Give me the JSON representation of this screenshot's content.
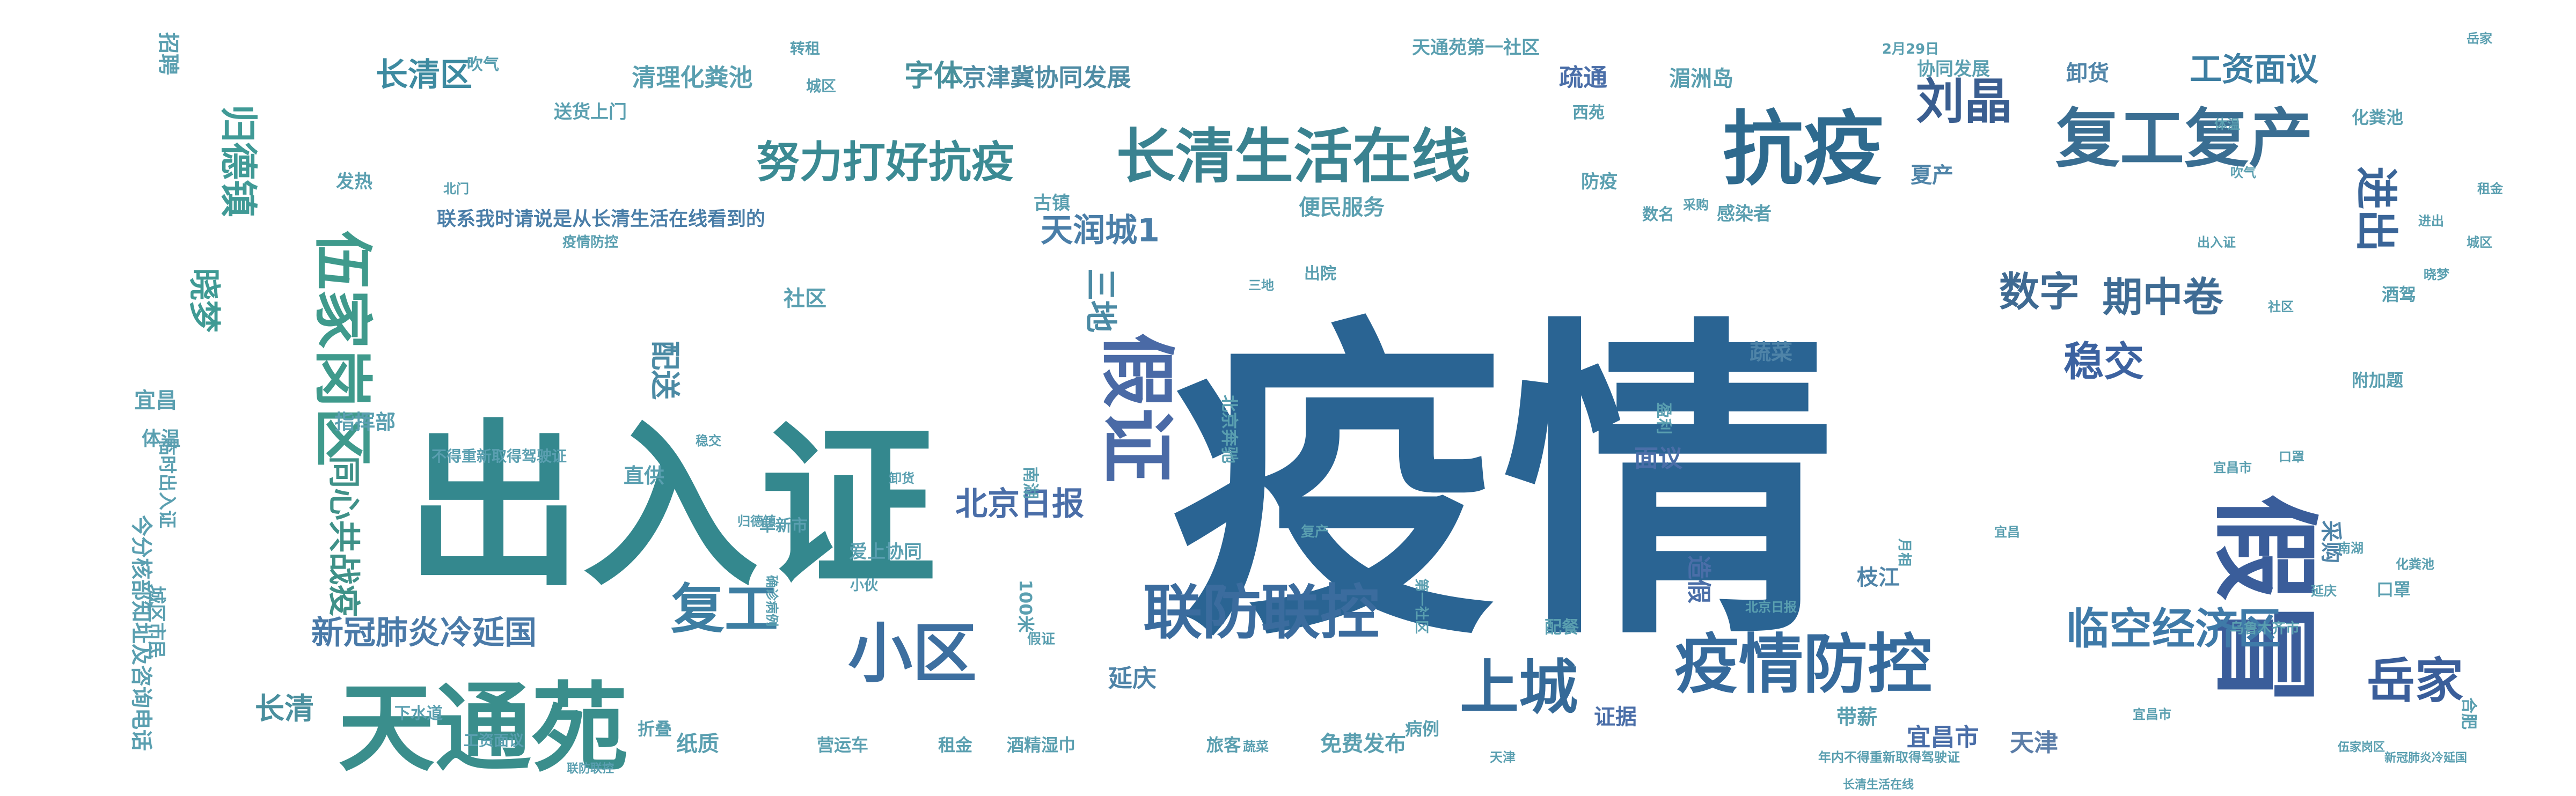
{
  "background": "#ffffff",
  "palette": [
    "#2a6493",
    "#2d7493",
    "#37888f",
    "#3f9a8c",
    "#5a9fb0",
    "#4a6ea8",
    "#60a8a0",
    "#3a5d9a"
  ],
  "words": [
    {
      "text": "疫情",
      "size": 1,
      "color": "#2a6493"
    },
    {
      "text": "出入证",
      "size": 0.56,
      "color": "#34888e"
    },
    {
      "text": "天通苑",
      "size": 0.3,
      "color": "#3a8e8c"
    },
    {
      "text": "假冒",
      "size": 0.3,
      "color": "#3a5d9a"
    },
    {
      "text": "抗疫",
      "size": 0.22,
      "color": "#2e6a8e"
    },
    {
      "text": "复工复产",
      "size": 0.22,
      "color": "#3a6e92"
    },
    {
      "text": "长清生活在线",
      "size": 0.2,
      "color": "#3a8290"
    },
    {
      "text": "假证",
      "size": 0.2,
      "color": "#4a6aa6"
    },
    {
      "text": "疫情防控",
      "size": 0.19,
      "color": "#356a9c"
    },
    {
      "text": "联防联控",
      "size": 0.18,
      "color": "#3b6c9e"
    },
    {
      "text": "小区",
      "size": 0.18,
      "color": "#3d6fa0"
    },
    {
      "text": "伍家岗区",
      "size": 0.17,
      "color": "#3f9a8c"
    },
    {
      "text": "上城",
      "size": 0.17,
      "color": "#356a98"
    },
    {
      "text": "复工",
      "size": 0.17,
      "color": "#3d7ea2"
    },
    {
      "text": "刘晶",
      "size": 0.14,
      "color": "#3a5e90"
    },
    {
      "text": "努力打好抗疫",
      "size": 0.14,
      "color": "#3b8a93"
    },
    {
      "text": "岳家",
      "size": 0.14,
      "color": "#3a5e9a"
    },
    {
      "text": "临空经济区",
      "size": 0.13,
      "color": "#3f7aa8"
    },
    {
      "text": "数字",
      "size": 0.12,
      "color": "#3f6a92"
    },
    {
      "text": "稳交",
      "size": 0.12,
      "color": "#3c62a0"
    },
    {
      "text": "期中卷",
      "size": 0.12,
      "color": "#3f6c94"
    },
    {
      "text": "进出",
      "size": 0.12,
      "color": "#3a6598"
    },
    {
      "text": "同心共战疫",
      "size": 0.11,
      "color": "#3f9188"
    },
    {
      "text": "归德镇",
      "size": 0.11,
      "color": "#409a96"
    },
    {
      "text": "晓梦",
      "size": 0.11,
      "color": "#3f9a94"
    },
    {
      "text": "长清区",
      "size": 0.1,
      "color": "#3d8aa0"
    },
    {
      "text": "新冠肺炎冷延国",
      "size": 0.1,
      "color": "#4a7aa8"
    },
    {
      "text": "北京日报",
      "size": 0.1,
      "color": "#4a6ea8"
    },
    {
      "text": "天润城1",
      "size": 0.09,
      "color": "#4a7ea8"
    },
    {
      "text": "工资面议",
      "size": 0.09,
      "color": "#3d7ea2"
    },
    {
      "text": "三地",
      "size": 0.09,
      "color": "#4b8aa4"
    },
    {
      "text": "配送",
      "size": 0.09,
      "color": "#4b8aa4"
    },
    {
      "text": "字体",
      "size": 0.09,
      "color": "#48909c"
    },
    {
      "text": "长清",
      "size": 0.09,
      "color": "#4a8f9e"
    },
    {
      "text": "京津冀协同发展",
      "size": 0.08,
      "color": "#4f8ca4"
    },
    {
      "text": "天津",
      "size": 0.07,
      "color": "#5b7da8"
    },
    {
      "text": "宜昌市",
      "size": 0.07,
      "color": "#4a6ea8"
    },
    {
      "text": "疏通",
      "size": 0.07,
      "color": "#4a6ea8"
    },
    {
      "text": "面议",
      "size": 0.07,
      "color": "#4a6ea8"
    },
    {
      "text": "造假",
      "size": 0.07,
      "color": "#4a6ea8"
    },
    {
      "text": "延庆",
      "size": 0.07,
      "color": "#4f84a8"
    },
    {
      "text": "枝江",
      "size": 0.06,
      "color": "#4f84a8"
    },
    {
      "text": "夏产",
      "size": 0.06,
      "color": "#4f84a8"
    },
    {
      "text": "卸货",
      "size": 0.06,
      "color": "#4f84a8"
    },
    {
      "text": "采购",
      "size": 0.06,
      "color": "#4f84a8"
    },
    {
      "text": "蔬菜",
      "size": 0.06,
      "color": "#4f84a8"
    },
    {
      "text": "纸质",
      "size": 0.06,
      "color": "#5a9fb0"
    },
    {
      "text": "租金",
      "size": 0.05,
      "color": "#5a9fb0"
    },
    {
      "text": "证据",
      "size": 0.06,
      "color": "#4a6ea8"
    },
    {
      "text": "吹气",
      "size": 0.05,
      "color": "#5a9fb0"
    },
    {
      "text": "直供",
      "size": 0.05,
      "color": "#5a9fb0"
    },
    {
      "text": "带薪",
      "size": 0.05,
      "color": "#5a9fb0"
    },
    {
      "text": "旅客",
      "size": 0.05,
      "color": "#5a9fb0"
    },
    {
      "text": "指挥部",
      "size": 0.05,
      "color": "#5a9fb0"
    },
    {
      "text": "体温",
      "size": 0.05,
      "color": "#5a9fb0"
    },
    {
      "text": "招聘",
      "size": 0.05,
      "color": "#5a9fb0"
    },
    {
      "text": "宜昌",
      "size": 0.05,
      "color": "#5a9fb0"
    },
    {
      "text": "发热",
      "size": 0.05,
      "color": "#5a9fb0"
    },
    {
      "text": "防疫",
      "size": 0.05,
      "color": "#5a9fb0"
    },
    {
      "text": "古镇",
      "size": 0.05,
      "color": "#5a9fb0"
    },
    {
      "text": "西苑",
      "size": 0.04,
      "color": "#5a9fb0"
    },
    {
      "text": "病例",
      "size": 0.04,
      "color": "#5a9fb0"
    },
    {
      "text": "口罩",
      "size": 0.04,
      "color": "#5a9fb0"
    },
    {
      "text": "折叠",
      "size": 0.04,
      "color": "#5a9fb0"
    },
    {
      "text": "营运车",
      "size": 0.04,
      "color": "#5a9fb0"
    },
    {
      "text": "酒精湿巾",
      "size": 0.04,
      "color": "#5a9fb0"
    },
    {
      "text": "北京奔驰",
      "size": 0.04,
      "color": "#5a9fb0"
    },
    {
      "text": "阜新市",
      "size": 0.04,
      "color": "#5a9fb0"
    },
    {
      "text": "下水道",
      "size": 0.04,
      "color": "#5a9fb0"
    },
    {
      "text": "清理化粪池",
      "size": 0.05,
      "color": "#5a9fb0"
    },
    {
      "text": "送货上门",
      "size": 0.05,
      "color": "#5a9fb0"
    },
    {
      "text": "便民服务",
      "size": 0.05,
      "color": "#5a9fb0"
    },
    {
      "text": "免费发布",
      "size": 0.05,
      "color": "#5a9fb0"
    },
    {
      "text": "2月29日",
      "size": 0.03,
      "color": "#5a9fb0"
    },
    {
      "text": "湄洲岛",
      "size": 0.04,
      "color": "#5a9fb0"
    },
    {
      "text": "协同发展",
      "size": 0.04,
      "color": "#5a9fb0"
    },
    {
      "text": "天通苑第一社区",
      "size": 0.04,
      "color": "#5a9fb0"
    },
    {
      "text": "联系我时请说是从长清生活在线看到的",
      "size": 0.06,
      "color": "#4a7ea8"
    },
    {
      "text": "今分核部知址及咨询电话",
      "size": 0.05,
      "color": "#5a9fb0"
    },
    {
      "text": "城区市民",
      "size": 0.05,
      "color": "#5a9fb0"
    },
    {
      "text": "临时出入证",
      "size": 0.05,
      "color": "#5a9fb0"
    },
    {
      "text": "不得重新取得驾驶证",
      "size": 0.04,
      "color": "#5a9fb0"
    },
    {
      "text": "转租",
      "size": 0.04,
      "color": "#5a9fb0"
    },
    {
      "text": "城区",
      "size": 0.04,
      "color": "#5a9fb0"
    },
    {
      "text": "北门",
      "size": 0.03,
      "color": "#5a9fb0"
    },
    {
      "text": "配餐",
      "size": 0.04,
      "color": "#5a9fb0"
    },
    {
      "text": "化粪池",
      "size": 0.04,
      "color": "#5a9fb0"
    },
    {
      "text": "酒驾",
      "size": 0.04,
      "color": "#5a9fb0"
    },
    {
      "text": "附加题",
      "size": 0.04,
      "color": "#5a9fb0"
    },
    {
      "text": "合肥",
      "size": 0.04,
      "color": "#5a9fb0"
    },
    {
      "text": "100米",
      "size": 0.04,
      "color": "#5a9fb0"
    },
    {
      "text": "乌鲁木齐市",
      "size": 0.03,
      "color": "#5a9fb0"
    },
    {
      "text": "年内不得重新取得驾驶证",
      "size": 0.03,
      "color": "#5a9fb0"
    },
    {
      "text": "长清生活在线",
      "size": 0.03,
      "color": "#5a9fb0"
    },
    {
      "text": "伍家岗区",
      "size": 0.03,
      "color": "#5a9fb0"
    },
    {
      "text": "新冠肺炎冷延国",
      "size": 0.03,
      "color": "#5a9fb0"
    },
    {
      "text": "宜昌市",
      "size": 0.03,
      "color": "#5a9fb0"
    },
    {
      "text": "北京日报",
      "size": 0.03,
      "color": "#5a9fb0"
    },
    {
      "text": "社区",
      "size": 0.05,
      "color": "#5a9fb0"
    },
    {
      "text": "感染者",
      "size": 0.04,
      "color": "#5a9fb0"
    },
    {
      "text": "数名",
      "size": 0.04,
      "color": "#5a9fb0"
    },
    {
      "text": "出院",
      "size": 0.04,
      "color": "#5a9fb0"
    },
    {
      "text": "南湖",
      "size": 0.04,
      "color": "#5a9fb0"
    },
    {
      "text": "盈利",
      "size": 0.04,
      "color": "#5a9fb0"
    },
    {
      "text": "复产",
      "size": 0.03,
      "color": "#5a9fb0"
    },
    {
      "text": "月相",
      "size": 0.03,
      "color": "#5a9fb0"
    },
    {
      "text": "小伙",
      "size": 0.03,
      "color": "#5a9fb0"
    },
    {
      "text": "爱上协同",
      "size": 0.04,
      "color": "#5a9fb0"
    },
    {
      "text": "第一社区",
      "size": 0.03,
      "color": "#5a9fb0"
    },
    {
      "text": "工资面议",
      "size": 0.03,
      "color": "#5a9fb0"
    },
    {
      "text": "联防联控",
      "size": 0.03,
      "color": "#5a9fb0"
    },
    {
      "text": "疫情防控",
      "size": 0.03,
      "color": "#5a9fb0"
    },
    {
      "text": "假证",
      "size": 0.03,
      "color": "#5a9fb0"
    },
    {
      "text": "确诊病例",
      "size": 0.03,
      "color": "#5a9fb0"
    },
    {
      "text": "延庆",
      "size": 0.03,
      "color": "#5a9fb0"
    },
    {
      "text": "吹气",
      "size": 0.03,
      "color": "#5a9fb0"
    },
    {
      "text": "岳家",
      "size": 0.03,
      "color": "#5a9fb0"
    },
    {
      "text": "三地",
      "size": 0.03,
      "color": "#5a9fb0"
    },
    {
      "text": "宜昌",
      "size": 0.03,
      "color": "#5a9fb0"
    },
    {
      "text": "蔬菜",
      "size": 0.03,
      "color": "#5a9fb0"
    },
    {
      "text": "晓梦",
      "size": 0.03,
      "color": "#5a9fb0"
    },
    {
      "text": "卸货",
      "size": 0.03,
      "color": "#5a9fb0"
    },
    {
      "text": "天津",
      "size": 0.03,
      "color": "#5a9fb0"
    },
    {
      "text": "租金",
      "size": 0.03,
      "color": "#5a9fb0"
    },
    {
      "text": "归德镇",
      "size": 0.03,
      "color": "#5a9fb0"
    },
    {
      "text": "稳交",
      "size": 0.03,
      "color": "#5a9fb0"
    },
    {
      "text": "化粪池",
      "size": 0.03,
      "color": "#5a9fb0"
    },
    {
      "text": "南湖",
      "size": 0.03,
      "color": "#5a9fb0"
    },
    {
      "text": "出入证",
      "size": 0.03,
      "color": "#5a9fb0"
    },
    {
      "text": "进出",
      "size": 0.03,
      "color": "#5a9fb0"
    },
    {
      "text": "宜昌市",
      "size": 0.03,
      "color": "#5a9fb0"
    },
    {
      "text": "城区",
      "size": 0.03,
      "color": "#5a9fb0"
    },
    {
      "text": "口罩",
      "size": 0.03,
      "color": "#5a9fb0"
    },
    {
      "text": "社区",
      "size": 0.03,
      "color": "#5a9fb0"
    },
    {
      "text": "采购",
      "size": 0.03,
      "color": "#5a9fb0"
    },
    {
      "text": "体温",
      "size": 0.03,
      "color": "#5a9fb0"
    }
  ]
}
